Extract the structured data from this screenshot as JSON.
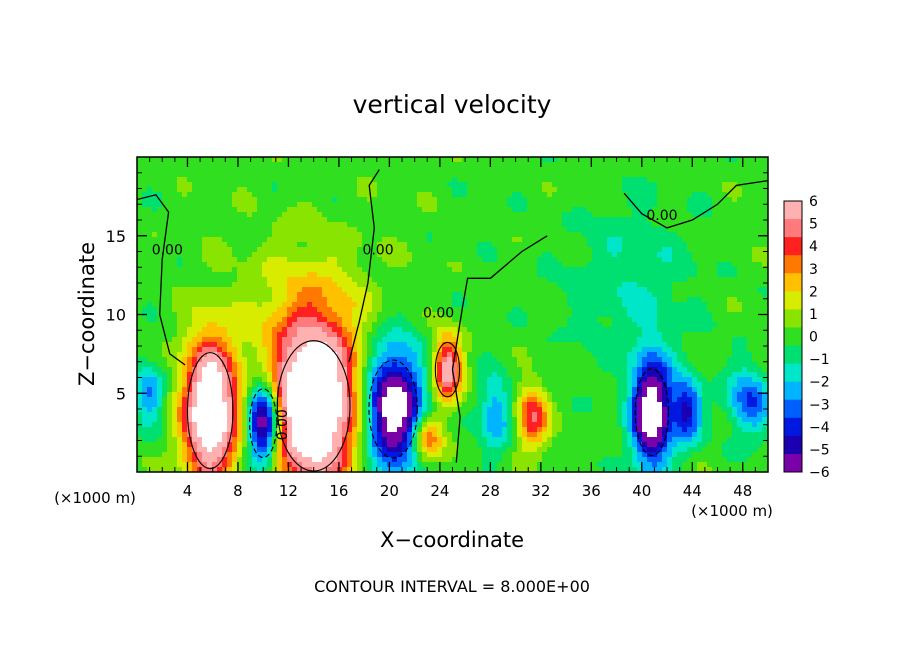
{
  "chart_data": {
    "type": "heatmap",
    "title": "vertical velocity",
    "xlabel": "X−coordinate",
    "ylabel": "Z−coordinate",
    "x_unit_left": "(×1000 m)",
    "x_unit_right": "(×1000 m)",
    "footer": "CONTOUR INTERVAL = 8.000E+00",
    "xlim": [
      0,
      50
    ],
    "ylim": [
      0,
      20
    ],
    "x_ticks": [
      4,
      8,
      12,
      16,
      20,
      24,
      28,
      32,
      36,
      40,
      44,
      48
    ],
    "y_ticks": [
      5,
      10,
      15
    ],
    "colorbar": {
      "min": -6,
      "max": 6,
      "ticks": [
        6,
        5,
        4,
        3,
        2,
        1,
        0,
        -1,
        -2,
        -3,
        -4,
        -5,
        -6
      ],
      "tick_labels": [
        "6",
        "5",
        "4",
        "3",
        "2",
        "1",
        "0",
        "−1",
        "−2",
        "−3",
        "−4",
        "−5",
        "−6"
      ],
      "colors": [
        "#7a00a8",
        "#1a00b0",
        "#0018e0",
        "#0060ff",
        "#00b4ff",
        "#00e6c8",
        "#00e070",
        "#30e020",
        "#88e400",
        "#d8ec00",
        "#ffc000",
        "#ff7800",
        "#ff2020",
        "#ff7a7a",
        "#ffb0b0"
      ]
    },
    "contour_labels": [
      {
        "text": "0.00",
        "x": 2.4,
        "z": 13.8
      },
      {
        "text": "0.00",
        "x": 19.1,
        "z": 13.8
      },
      {
        "text": "0.00",
        "x": 23.9,
        "z": 9.8
      },
      {
        "text": "0.00",
        "x": 41.6,
        "z": 16.0
      },
      {
        "text": "0.00",
        "x": 11.9,
        "z": 3.0
      }
    ],
    "features": [
      {
        "kind": "updraft",
        "x": 5.8,
        "z": 3.9,
        "sx": 1.5,
        "sz": 3.2,
        "amp": 9
      },
      {
        "kind": "downdraft",
        "x": 10.0,
        "z": 3.1,
        "sx": 0.9,
        "sz": 1.9,
        "amp": -8
      },
      {
        "kind": "updraft",
        "x": 14.0,
        "z": 4.2,
        "sx": 2.4,
        "sz": 3.6,
        "amp": 10
      },
      {
        "kind": "updraft-plume",
        "x": 13.6,
        "z": 10.5,
        "sx": 3.8,
        "sz": 3.3,
        "amp": 1.5
      },
      {
        "kind": "downdraft",
        "x": 20.3,
        "z": 4.0,
        "sx": 1.6,
        "sz": 2.7,
        "amp": -8
      },
      {
        "kind": "updraft",
        "x": 24.6,
        "z": 6.5,
        "sx": 0.8,
        "sz": 1.5,
        "amp": 6
      },
      {
        "kind": "updraft",
        "x": 23.0,
        "z": 2.0,
        "sx": 0.9,
        "sz": 1.1,
        "amp": 4
      },
      {
        "kind": "downdraft",
        "x": 28.4,
        "z": 3.6,
        "sx": 0.9,
        "sz": 1.6,
        "amp": -3
      },
      {
        "kind": "updraft",
        "x": 31.3,
        "z": 3.4,
        "sx": 0.9,
        "sz": 1.4,
        "amp": 4.5
      },
      {
        "kind": "downdraft",
        "x": 40.8,
        "z": 3.8,
        "sx": 1.1,
        "sz": 2.4,
        "amp": -8
      },
      {
        "kind": "downdraft",
        "x": 43.6,
        "z": 3.9,
        "sx": 0.8,
        "sz": 1.4,
        "amp": -4.5
      },
      {
        "kind": "downdraft",
        "x": 1.0,
        "z": 5.0,
        "sx": 0.8,
        "sz": 1.3,
        "amp": -3
      },
      {
        "kind": "downdraft",
        "x": 48.5,
        "z": 4.5,
        "sx": 1.2,
        "sz": 1.5,
        "amp": -3.5
      },
      {
        "kind": "downdraft",
        "x": 39.0,
        "z": 12.0,
        "sx": 3.5,
        "sz": 3.5,
        "amp": -1.2
      }
    ]
  }
}
